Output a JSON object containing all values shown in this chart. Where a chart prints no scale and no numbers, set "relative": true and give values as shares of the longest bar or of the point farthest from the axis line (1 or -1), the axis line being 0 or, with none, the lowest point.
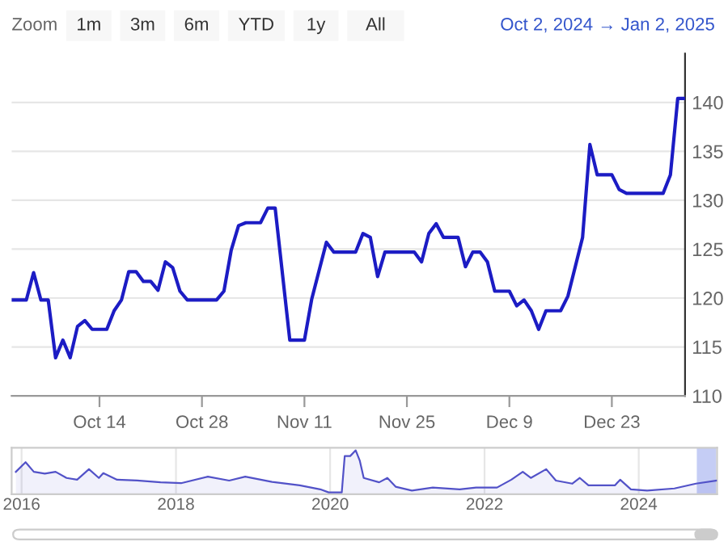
{
  "chart_data": [
    {
      "type": "line",
      "annotations": [
        "Zoom",
        "1m",
        "3m",
        "6m",
        "YTD",
        "1y",
        "All",
        "Oct 2, 2024 → Jan 2, 2025"
      ],
      "x": [
        "2024-10-02",
        "2024-10-04",
        "2024-10-05",
        "2024-10-06",
        "2024-10-07",
        "2024-10-08",
        "2024-10-09",
        "2024-10-10",
        "2024-10-11",
        "2024-10-12",
        "2024-10-13",
        "2024-10-15",
        "2024-10-16",
        "2024-10-17",
        "2024-10-18",
        "2024-10-19",
        "2024-10-20",
        "2024-10-21",
        "2024-10-22",
        "2024-10-23",
        "2024-10-24",
        "2024-10-25",
        "2024-10-26",
        "2024-10-30",
        "2024-10-31",
        "2024-11-01",
        "2024-11-02",
        "2024-11-03",
        "2024-11-05",
        "2024-11-06",
        "2024-11-07",
        "2024-11-09",
        "2024-11-11",
        "2024-11-12",
        "2024-11-14",
        "2024-11-15",
        "2024-11-18",
        "2024-11-19",
        "2024-11-20",
        "2024-11-21",
        "2024-11-22",
        "2024-11-26",
        "2024-11-27",
        "2024-11-28",
        "2024-11-29",
        "2024-11-30",
        "2024-12-02",
        "2024-12-03",
        "2024-12-04",
        "2024-12-05",
        "2024-12-06",
        "2024-12-07",
        "2024-12-09",
        "2024-12-10",
        "2024-12-11",
        "2024-12-12",
        "2024-12-13",
        "2024-12-14",
        "2024-12-16",
        "2024-12-17",
        "2024-12-18",
        "2024-12-19",
        "2024-12-20",
        "2024-12-21",
        "2024-12-23",
        "2024-12-24",
        "2024-12-25",
        "2024-12-30",
        "2024-12-31",
        "2025-01-01",
        "2025-01-02"
      ],
      "series": [
        {
          "color": "#1c1cc4",
          "values": [
            119.8,
            119.8,
            122.6,
            119.8,
            119.8,
            113.9,
            115.7,
            113.9,
            117.1,
            117.7,
            116.8,
            116.8,
            118.7,
            119.8,
            122.7,
            122.7,
            121.7,
            121.7,
            120.8,
            123.7,
            123.1,
            120.7,
            119.8,
            119.8,
            120.7,
            124.9,
            127.4,
            127.7,
            127.7,
            129.2,
            129.2,
            115.7,
            115.7,
            119.9,
            125.7,
            124.7,
            124.7,
            126.6,
            126.2,
            122.2,
            124.7,
            124.7,
            123.7,
            126.6,
            127.6,
            126.2,
            126.2,
            123.2,
            124.7,
            124.7,
            123.7,
            120.7,
            120.7,
            119.2,
            119.8,
            118.7,
            116.8,
            118.7,
            118.7,
            120.2,
            123.2,
            126.2,
            135.7,
            132.6,
            132.6,
            131.1,
            130.7,
            130.7,
            132.6,
            140.4,
            140.4
          ]
        }
      ],
      "xlim": [
        "2024-10-02",
        "2025-01-02"
      ],
      "xticks": [
        {
          "value": "2024-10-14",
          "label": "Oct 14"
        },
        {
          "value": "2024-10-28",
          "label": "Oct 28"
        },
        {
          "value": "2024-11-11",
          "label": "Nov 11"
        },
        {
          "value": "2024-11-25",
          "label": "Nov 25"
        },
        {
          "value": "2024-12-09",
          "label": "Dec 9"
        },
        {
          "value": "2024-12-23",
          "label": "Dec 23"
        }
      ],
      "ylim": [
        110,
        145
      ],
      "yticks": [
        110,
        115,
        120,
        125,
        130,
        135,
        140
      ],
      "grid": "y",
      "legend": false
    },
    {
      "type": "area",
      "relative": true,
      "grid": "x",
      "legend": false,
      "x": [
        "2015-12-05",
        "2016-01-20",
        "2016-02-28",
        "2016-04-20",
        "2016-06-10",
        "2016-08-01",
        "2016-09-20",
        "2016-11-15",
        "2017-01-01",
        "2017-01-22",
        "2017-03-28",
        "2017-07-01",
        "2017-10-20",
        "2018-01-25",
        "2018-06-01",
        "2018-09-10",
        "2018-11-25",
        "2019-04-01",
        "2019-08-10",
        "2019-11-15",
        "2019-12-25",
        "2020-02-25",
        "2020-03-10",
        "2020-04-05",
        "2020-05-01",
        "2020-05-20",
        "2020-06-08",
        "2020-08-20",
        "2020-09-28",
        "2020-11-06",
        "2021-01-22",
        "2021-05-01",
        "2021-09-05",
        "2021-11-22",
        "2022-03-01",
        "2022-05-08",
        "2022-07-01",
        "2022-08-08",
        "2022-10-20",
        "2022-12-05",
        "2023-02-20",
        "2023-03-28",
        "2023-05-08",
        "2023-09-10",
        "2023-10-05",
        "2023-11-25",
        "2024-02-10",
        "2024-06-18",
        "2024-09-28",
        "2025-01-02"
      ],
      "series": [
        {
          "color": "#5252c8",
          "values": [
            0.51,
            0.73,
            0.51,
            0.47,
            0.51,
            0.37,
            0.33,
            0.57,
            0.37,
            0.48,
            0.33,
            0.31,
            0.27,
            0.25,
            0.4,
            0.31,
            0.4,
            0.28,
            0.2,
            0.11,
            0.04,
            0.04,
            0.87,
            0.87,
            1,
            0.77,
            0.37,
            0.27,
            0.37,
            0.17,
            0.08,
            0.15,
            0.11,
            0.15,
            0.15,
            0.33,
            0.51,
            0.37,
            0.57,
            0.31,
            0.24,
            0.37,
            0.2,
            0.2,
            0.33,
            0.11,
            0.08,
            0.13,
            0.24,
            0.31
          ]
        }
      ],
      "xlim": [
        "2015-11-15",
        "2025-01-06"
      ],
      "xticks": [
        {
          "value": "2016-01-01",
          "label": "2016"
        },
        {
          "value": "2018-01-01",
          "label": "2018"
        },
        {
          "value": "2020-01-01",
          "label": "2020"
        },
        {
          "value": "2022-01-01",
          "label": "2022"
        },
        {
          "value": "2024-01-01",
          "label": "2024"
        }
      ],
      "bands": [
        {
          "axis": "x",
          "from": "2024-10-02",
          "to": "2025-01-02",
          "color": "#c5cdf5"
        }
      ]
    }
  ]
}
